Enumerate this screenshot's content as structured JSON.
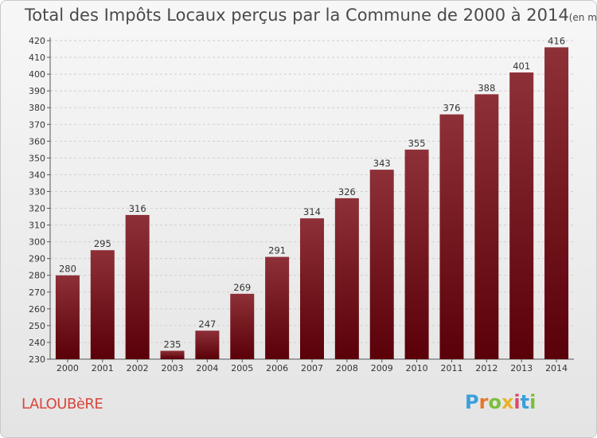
{
  "header": {
    "title": "Total des Impôts Locaux perçus par la Commune de 2000 à 2014",
    "unit": "(en milliers d'€)"
  },
  "footer": {
    "commune": "LALOUBèRE",
    "logo": "Proxiti",
    "logo_colors": [
      "#3aa0dc",
      "#e8772a",
      "#7cbf3a",
      "#e8b22a",
      "#d94a6a",
      "#3aa0dc",
      "#7cbf3a"
    ]
  },
  "chart_data": {
    "type": "bar",
    "title": "Total des Impôts Locaux perçus par la Commune de 2000 à 2014",
    "ylabel": "en milliers d'€",
    "xlabel": "",
    "categories": [
      "2000",
      "2001",
      "2002",
      "2003",
      "2004",
      "2005",
      "2006",
      "2007",
      "2008",
      "2009",
      "2010",
      "2011",
      "2012",
      "2013",
      "2014"
    ],
    "values": [
      280,
      295,
      316,
      235,
      247,
      269,
      291,
      314,
      326,
      343,
      355,
      376,
      388,
      401,
      416
    ],
    "ylim": [
      230,
      420
    ],
    "ytick_step": 10,
    "grid": true,
    "bar_color_top": "#8e3038",
    "bar_color_bottom": "#5a0008"
  }
}
